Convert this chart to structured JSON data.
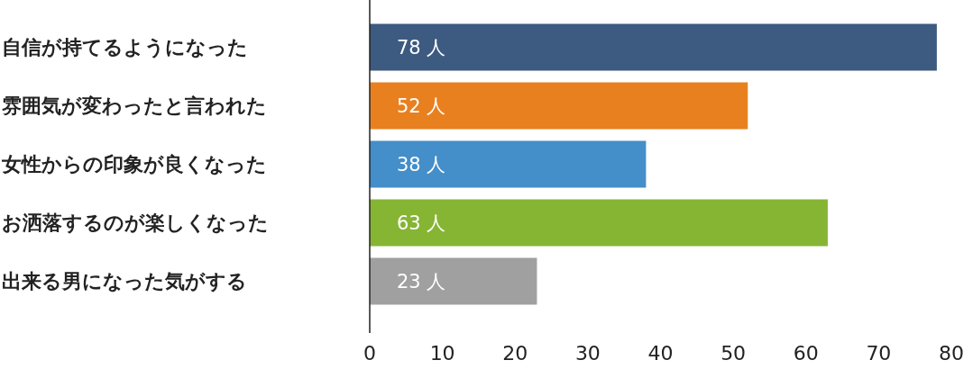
{
  "chart_data": {
    "type": "bar",
    "orientation": "horizontal",
    "categories": [
      "自信が持てるようになった",
      "雰囲気が変わったと言われた",
      "女性からの印象が良くなった",
      "お洒落するのが楽しくなった",
      "出来る男になった気がする"
    ],
    "values": [
      78,
      52,
      38,
      63,
      23
    ],
    "colors": [
      "#3d5a80",
      "#e8801f",
      "#448ec9",
      "#86b534",
      "#a0a0a0"
    ],
    "value_labels": [
      "78 人",
      "52 人",
      "38 人",
      "63 人",
      "23 人"
    ],
    "xlim": [
      0,
      80
    ],
    "xticks": [
      0,
      10,
      20,
      30,
      40,
      50,
      60,
      70,
      80
    ]
  }
}
